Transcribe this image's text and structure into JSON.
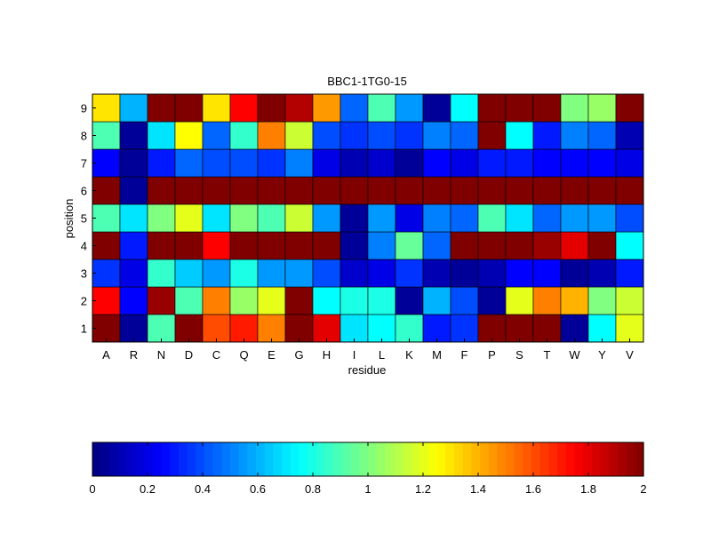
{
  "chart_data": {
    "type": "heatmap",
    "title": "BBC1-1TG0-15",
    "xlabel": "residue",
    "ylabel": "position",
    "x_categories": [
      "A",
      "R",
      "N",
      "D",
      "C",
      "Q",
      "E",
      "G",
      "H",
      "I",
      "L",
      "K",
      "M",
      "F",
      "P",
      "S",
      "T",
      "W",
      "Y",
      "V"
    ],
    "y_categories": [
      "1",
      "2",
      "3",
      "4",
      "5",
      "6",
      "7",
      "8",
      "9"
    ],
    "values": [
      [
        2.0,
        0.05,
        0.9,
        2.0,
        1.6,
        1.7,
        1.5,
        2.0,
        1.8,
        0.7,
        0.75,
        0.85,
        0.3,
        0.35,
        2.0,
        2.0,
        2.0,
        0.05,
        0.75,
        1.2
      ],
      [
        1.75,
        0.25,
        1.95,
        0.9,
        1.5,
        1.05,
        1.2,
        2.0,
        0.75,
        0.8,
        0.8,
        0.05,
        0.6,
        0.4,
        0.05,
        1.2,
        1.5,
        1.4,
        1.0,
        1.15
      ],
      [
        0.35,
        0.2,
        0.85,
        0.65,
        0.55,
        0.8,
        0.55,
        0.55,
        0.4,
        0.15,
        0.2,
        0.35,
        0.1,
        0.05,
        0.1,
        0.25,
        0.25,
        0.05,
        0.1,
        0.3
      ],
      [
        2.0,
        0.3,
        2.0,
        2.0,
        1.75,
        2.0,
        2.0,
        2.0,
        2.0,
        0.05,
        0.5,
        0.95,
        0.45,
        2.0,
        2.0,
        2.0,
        1.95,
        1.8,
        2.0,
        0.75
      ],
      [
        0.9,
        0.7,
        1.0,
        1.2,
        0.7,
        1.0,
        0.9,
        1.15,
        0.55,
        0.05,
        0.55,
        0.2,
        0.5,
        0.45,
        0.9,
        0.7,
        0.45,
        0.55,
        0.55,
        0.4
      ],
      [
        2.0,
        0.05,
        2.0,
        2.0,
        2.0,
        2.0,
        2.0,
        2.0,
        2.0,
        2.0,
        2.0,
        2.0,
        2.0,
        2.0,
        2.0,
        2.0,
        2.0,
        2.0,
        2.0,
        2.0
      ],
      [
        0.25,
        0.05,
        0.3,
        0.45,
        0.4,
        0.4,
        0.35,
        0.5,
        0.2,
        0.1,
        0.15,
        0.05,
        0.25,
        0.2,
        0.3,
        0.3,
        0.25,
        0.25,
        0.25,
        0.2
      ],
      [
        0.9,
        0.05,
        0.7,
        1.25,
        0.45,
        0.85,
        1.5,
        1.15,
        0.4,
        0.35,
        0.4,
        0.35,
        0.5,
        0.45,
        2.0,
        0.75,
        0.3,
        0.5,
        0.45,
        0.1
      ],
      [
        1.3,
        0.6,
        2.0,
        2.0,
        1.3,
        1.75,
        2.0,
        1.9,
        1.45,
        0.45,
        0.9,
        0.55,
        0.05,
        0.75,
        2.0,
        2.0,
        2.0,
        1.0,
        1.05,
        2.0
      ]
    ],
    "value_range": [
      0,
      2
    ],
    "colormap": "jet",
    "colorbar": {
      "orientation": "horizontal",
      "placement": "bottom",
      "ticks": [
        "0",
        "0.2",
        "0.4",
        "0.6",
        "0.8",
        "1",
        "1.2",
        "1.4",
        "1.6",
        "1.8",
        "2"
      ],
      "tick_values": [
        0,
        0.2,
        0.4,
        0.6,
        0.8,
        1.0,
        1.2,
        1.4,
        1.6,
        1.8,
        2.0
      ]
    }
  }
}
